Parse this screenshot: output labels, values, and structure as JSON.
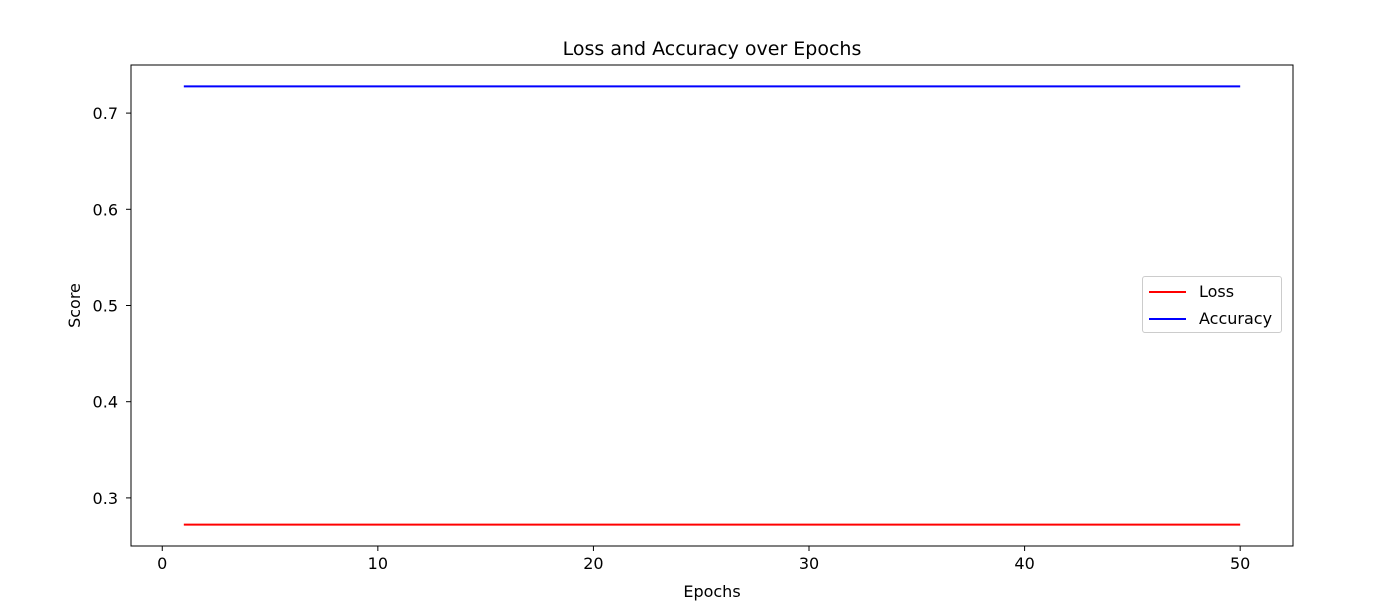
{
  "chart_data": {
    "type": "line",
    "title": "Loss and Accuracy over Epochs",
    "xlabel": "Epochs",
    "ylabel": "Score",
    "xlim": [
      -1.45,
      52.45
    ],
    "ylim": [
      0.25,
      0.75
    ],
    "xticks": [
      0,
      10,
      20,
      30,
      40,
      50
    ],
    "yticks": [
      0.3,
      0.4,
      0.5,
      0.6,
      0.7
    ],
    "ytick_labels": [
      "0.3",
      "0.4",
      "0.5",
      "0.6",
      "0.7"
    ],
    "grid": false,
    "legend_position": "center right",
    "x": [
      1,
      50
    ],
    "series": [
      {
        "name": "Loss",
        "color": "#ff0000",
        "x": [
          1,
          50
        ],
        "values": [
          0.2722,
          0.2722
        ]
      },
      {
        "name": "Accuracy",
        "color": "#0000ff",
        "x": [
          1,
          50
        ],
        "values": [
          0.7278,
          0.7278
        ]
      }
    ]
  }
}
